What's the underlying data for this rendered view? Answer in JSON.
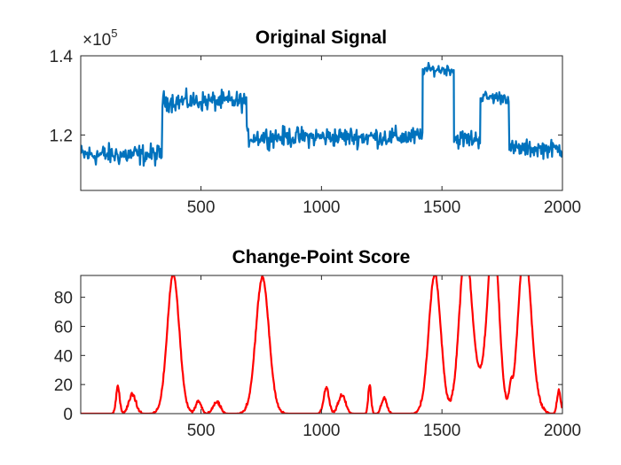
{
  "chart_data": [
    {
      "type": "line",
      "title": "Original Signal",
      "xlabel": "",
      "ylabel": "",
      "y_exponent_label": "×10",
      "y_exponent_power": "5",
      "xlim": [
        1,
        2000
      ],
      "ylim": [
        106000,
        140000
      ],
      "x_ticks": [
        500,
        1000,
        1500,
        2000
      ],
      "y_ticks": [
        120000,
        140000
      ],
      "y_tick_labels": [
        "1.2",
        "1.4"
      ],
      "grid": false,
      "color": "#0072BD",
      "segments": [
        {
          "x_start": 1,
          "x_end": 340,
          "level": 115000,
          "noise": 2500
        },
        {
          "x_start": 340,
          "x_end": 690,
          "level": 128500,
          "noise": 2300
        },
        {
          "x_start": 690,
          "x_end": 1420,
          "level": 119500,
          "noise": 2300
        },
        {
          "x_start": 1420,
          "x_end": 1550,
          "level": 136500,
          "noise": 1300
        },
        {
          "x_start": 1550,
          "x_end": 1660,
          "level": 119000,
          "noise": 2200
        },
        {
          "x_start": 1660,
          "x_end": 1780,
          "level": 129500,
          "noise": 1500
        },
        {
          "x_start": 1780,
          "x_end": 2000,
          "level": 116500,
          "noise": 2000
        }
      ]
    },
    {
      "type": "line",
      "title": "Change-Point Score",
      "xlabel": "",
      "ylabel": "",
      "xlim": [
        1,
        2000
      ],
      "ylim": [
        0,
        95
      ],
      "x_ticks": [
        500,
        1000,
        1500,
        2000
      ],
      "y_ticks": [
        0,
        20,
        40,
        60,
        80
      ],
      "grid": false,
      "color": "#FF0000",
      "peaks": [
        {
          "x": 385,
          "height": 95,
          "width": 35
        },
        {
          "x": 755,
          "height": 93,
          "width": 38
        },
        {
          "x": 1470,
          "height": 95,
          "width": 35
        },
        {
          "x": 1595,
          "height": 95,
          "width": 35
        },
        {
          "x": 1715,
          "height": 95,
          "width": 30
        },
        {
          "x": 1840,
          "height": 95,
          "width": 35
        },
        {
          "x": 1785,
          "height": 12,
          "width": 10
        },
        {
          "x": 1700,
          "height": 35,
          "width": 45
        },
        {
          "x": 1620,
          "height": 25,
          "width": 40
        },
        {
          "x": 1860,
          "height": 25,
          "width": 40
        },
        {
          "x": 155,
          "height": 18,
          "width": 10
        },
        {
          "x": 215,
          "height": 12,
          "width": 20
        },
        {
          "x": 490,
          "height": 8,
          "width": 15
        },
        {
          "x": 565,
          "height": 7,
          "width": 20
        },
        {
          "x": 1020,
          "height": 17,
          "width": 15
        },
        {
          "x": 1085,
          "height": 12,
          "width": 20
        },
        {
          "x": 1200,
          "height": 19,
          "width": 8
        },
        {
          "x": 1260,
          "height": 10,
          "width": 15
        },
        {
          "x": 1985,
          "height": 15,
          "width": 10
        }
      ]
    }
  ]
}
